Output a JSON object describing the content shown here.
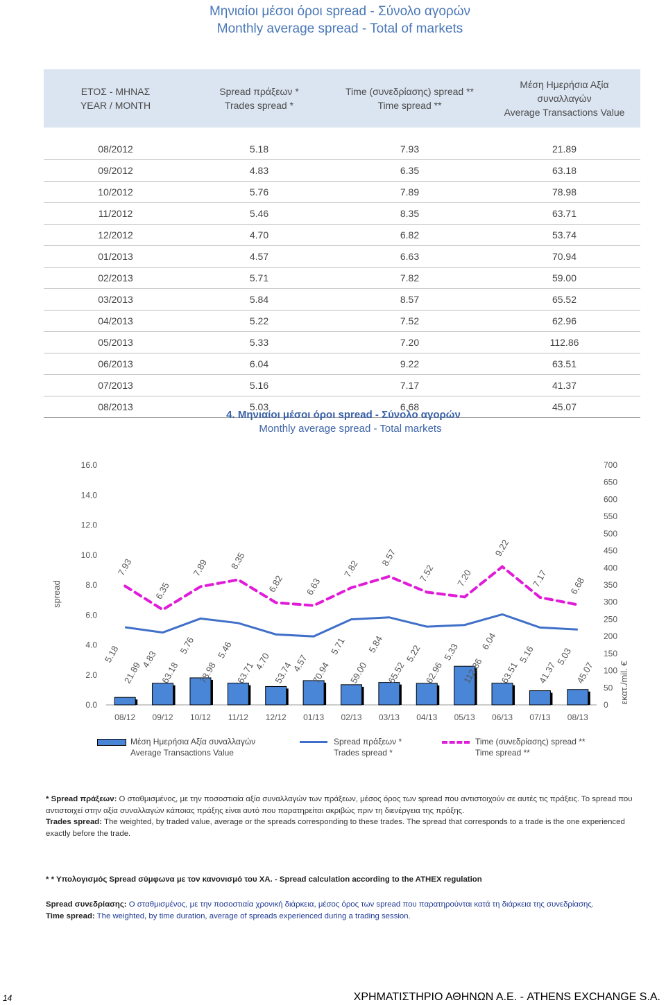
{
  "page": {
    "title_gr": "Μηνιαίοι μέσοι όροι spread - Σύνολο αγορών",
    "title_en": "Monthly average spread - Total of markets",
    "page_number": "14",
    "footer": "ΧΡΗΜΑΤΙΣΤΗΡΙΟ ΑΘΗΝΩΝ Α.Ε. - ATHENS EXCHANGE S.A."
  },
  "table": {
    "headers": [
      {
        "gr": "ΕΤΟΣ - ΜΗΝΑΣ",
        "en": "YEAR / MONTH"
      },
      {
        "gr": "Spread πράξεων *",
        "en": "Trades spread *"
      },
      {
        "gr": "Time (συνεδρίασης) spread **",
        "en": "Time spread **"
      },
      {
        "gr": "Μέση Ημερήσια Αξία συναλλαγών",
        "en": "Average Transactions Value"
      }
    ],
    "rows": [
      [
        "08/2012",
        "5.18",
        "7.93",
        "21.89"
      ],
      [
        "09/2012",
        "4.83",
        "6.35",
        "63.18"
      ],
      [
        "10/2012",
        "5.76",
        "7.89",
        "78.98"
      ],
      [
        "11/2012",
        "5.46",
        "8.35",
        "63.71"
      ],
      [
        "12/2012",
        "4.70",
        "6.82",
        "53.74"
      ],
      [
        "01/2013",
        "4.57",
        "6.63",
        "70.94"
      ],
      [
        "02/2013",
        "5.71",
        "7.82",
        "59.00"
      ],
      [
        "03/2013",
        "5.84",
        "8.57",
        "65.52"
      ],
      [
        "04/2013",
        "5.22",
        "7.52",
        "62.96"
      ],
      [
        "05/2013",
        "5.33",
        "7.20",
        "112.86"
      ],
      [
        "06/2013",
        "6.04",
        "9.22",
        "63.51"
      ],
      [
        "07/2013",
        "5.16",
        "7.17",
        "41.37"
      ],
      [
        "08/2013",
        "5.03",
        "6.68",
        "45.07"
      ]
    ]
  },
  "chart_title": {
    "gr": "4. Μηνιαίοι μέσοι όροι spread - Σύνολο αγορών",
    "en": "Monthly average spread - Total markets"
  },
  "chart_data": {
    "type": "bar",
    "categories": [
      "08/12",
      "09/12",
      "10/12",
      "11/12",
      "12/12",
      "01/13",
      "02/13",
      "03/13",
      "04/13",
      "05/13",
      "06/13",
      "07/13",
      "08/13"
    ],
    "series": [
      {
        "name": "Μέση Ημερήσια Αξία συναλλαγών / Average Transactions Value",
        "type": "bar",
        "axis": "right",
        "color": "#4a86d8",
        "values": [
          21.89,
          63.18,
          78.98,
          63.71,
          53.74,
          70.94,
          59.0,
          65.52,
          62.96,
          112.86,
          63.51,
          41.37,
          45.07
        ]
      },
      {
        "name": "Spread πράξεων * / Trades spread *",
        "type": "line",
        "axis": "left",
        "color": "#3f6fc9",
        "values": [
          5.18,
          4.83,
          5.76,
          5.46,
          4.7,
          4.57,
          5.71,
          5.84,
          5.22,
          5.33,
          6.04,
          5.16,
          5.03
        ]
      },
      {
        "name": "Time (συνεδρίασης) spread ** / Time spread **",
        "type": "line-dashed",
        "axis": "left",
        "color": "#e01bd8",
        "values": [
          7.93,
          6.35,
          7.89,
          8.35,
          6.82,
          6.63,
          7.82,
          8.57,
          7.52,
          7.2,
          9.22,
          7.17,
          6.68
        ]
      }
    ],
    "ylabel": "spread",
    "y2label": "εκατ./mil. €",
    "ylim": [
      0,
      16
    ],
    "y2lim": [
      0,
      700
    ],
    "yticks": [
      "0.0",
      "2.0",
      "4.0",
      "6.0",
      "8.0",
      "10.0",
      "12.0",
      "14.0",
      "16.0"
    ],
    "y2ticks": [
      "0",
      "50",
      "100",
      "150",
      "200",
      "250",
      "300",
      "350",
      "400",
      "450",
      "500",
      "550",
      "600",
      "650",
      "700"
    ],
    "grid": false,
    "legend_position": "bottom"
  },
  "legend": [
    {
      "gr": "Μέση Ημερήσια Αξία συναλλαγών",
      "en": "Average Transactions Value"
    },
    {
      "gr": "Spread πράξεων *",
      "en": "Trades spread *"
    },
    {
      "gr": "Time (συνεδρίασης) spread **",
      "en": "Time spread **"
    }
  ],
  "notes": {
    "n1_label": "* Spread πράξεων:",
    "n1_gr": " Ο σταθμισμένος, με την ποσοστιαία αξία συναλλαγών των πράξεων, μέσος όρος των spread που αντιστοιχούν σε αυτές τις πράξεις. Το spread που αντιστοιχεί στην αξία συναλλαγών κάποιας πράξης είναι αυτό που παρατηρείται ακριβώς πριν τη διενέργεια της πράξης.",
    "n1_en_label": "Trades spread:",
    "n1_en": " The weighted, by traded value, average or the spreads corresponding to these trades. The spread that corresponds to a trade is the one experienced exactly before the trade.",
    "n2": "* * Υπολογισμός Spread σύμφωνα με τον κανονισμό του ΧΑ. - Spread calculation according to the ATHEX regulation",
    "n3_label": "Spread συνεδρίασης:",
    "n3_gr": " Ο σταθμισμένος, με την ποσοστιαία χρονική διάρκεια, μέσος όρος των spread που παρατηρούνται κατά τη διάρκεια της συνεδρίασης.",
    "n3_en_label": "Time spread:",
    "n3_en": " The weighted, by time duration, average of spreads experienced during a trading session."
  }
}
